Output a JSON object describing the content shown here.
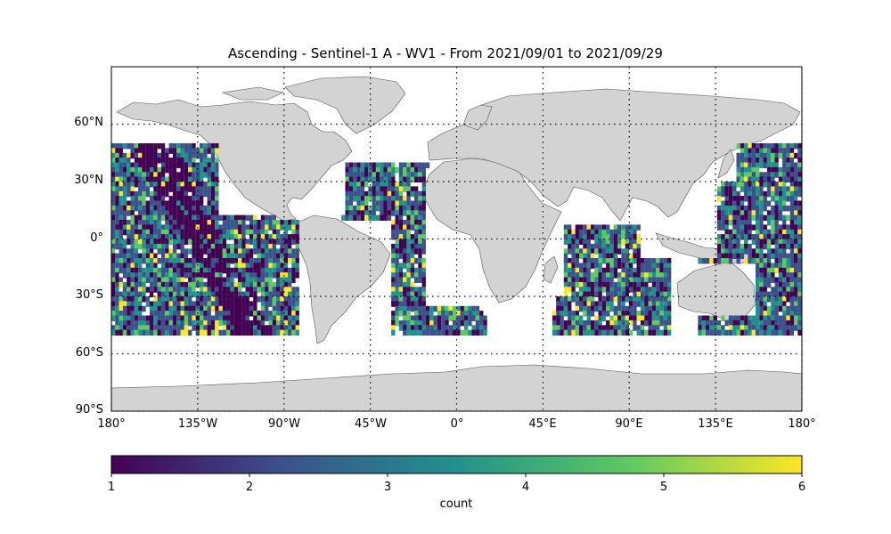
{
  "title": "Ascending - Sentinel-1 A - WV1 - From 2021/09/01 to 2021/09/29",
  "map": {
    "lon_range": [
      -180,
      180
    ],
    "lat_range": [
      -90,
      90
    ],
    "gridlines": "dotted",
    "land_color": "#d3d3d3",
    "lat_ticks": [
      {
        "lat": 60,
        "label": "60°N"
      },
      {
        "lat": 30,
        "label": "30°N"
      },
      {
        "lat": 0,
        "label": "0°"
      },
      {
        "lat": -30,
        "label": "30°S"
      },
      {
        "lat": -60,
        "label": "60°S"
      },
      {
        "lat": -90,
        "label": "90°S"
      }
    ],
    "lon_ticks": [
      {
        "lon": -180,
        "label": "180°"
      },
      {
        "lon": -135,
        "label": "135°W"
      },
      {
        "lon": -90,
        "label": "90°W"
      },
      {
        "lon": -45,
        "label": "45°W"
      },
      {
        "lon": 0,
        "label": "0°"
      },
      {
        "lon": 45,
        "label": "45°E"
      },
      {
        "lon": 90,
        "label": "90°E"
      },
      {
        "lon": 135,
        "label": "135°E"
      },
      {
        "lon": 180,
        "label": "180°"
      }
    ],
    "data_lat_extent": [
      -50,
      50
    ]
  },
  "colorbar": {
    "label": "count",
    "min": 1,
    "max": 6,
    "ticks": [
      "1",
      "2",
      "3",
      "4",
      "5",
      "6"
    ],
    "colormap": "viridis",
    "stops": [
      "#440154",
      "#3b528b",
      "#21918c",
      "#5ec962",
      "#fde725"
    ]
  }
}
